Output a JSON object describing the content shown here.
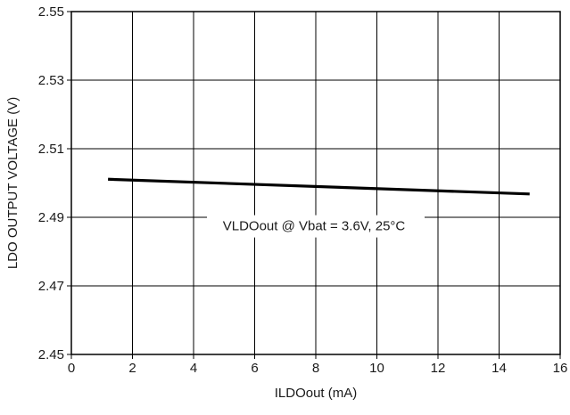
{
  "chart_data": {
    "type": "line",
    "title": "",
    "xlabel": "ILDOout (mA)",
    "ylabel": "LDO OUTPUT VOLTAGE (V)",
    "xlim": [
      0,
      16
    ],
    "ylim": [
      2.45,
      2.55
    ],
    "x_ticks": [
      "0",
      "2",
      "4",
      "6",
      "8",
      "10",
      "12",
      "14",
      "16"
    ],
    "y_ticks": [
      "2.45",
      "2.47",
      "2.49",
      "2.51",
      "2.53",
      "2.55"
    ],
    "grid": true,
    "annotation": "VLDOout @ Vbat = 3.6V, 25°C",
    "series": [
      {
        "x": [
          1.2,
          15
        ],
        "y": [
          2.5011,
          2.4968
        ]
      }
    ],
    "colors": {
      "line": "#000000",
      "grid": "#000000",
      "background": "#ffffff"
    }
  }
}
